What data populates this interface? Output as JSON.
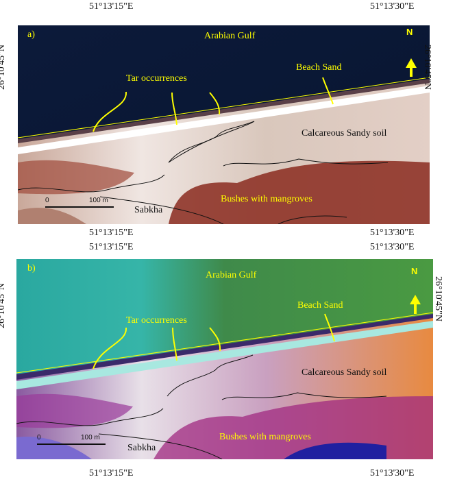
{
  "panels": [
    {
      "id": "a",
      "label": "a)",
      "top_lon_left": "51°13'15\"E",
      "top_lon_right": "51°13'30\"E",
      "bottom_lon_left": "51°13'15\"E",
      "bottom_lon_right": "51°13'30\"E",
      "lat_left": "26°10'45\"N",
      "lat_right": "26°10'45\"N"
    },
    {
      "id": "b",
      "label": "b)",
      "top_lon_left": "51°13'15\"E",
      "top_lon_right": "51°13'30\"E",
      "bottom_lon_left": "51°13'15\"E",
      "bottom_lon_right": "51°13'30\"E",
      "lat_left": "26°10'45\"N",
      "lat_right": "26°10'45\"N"
    }
  ],
  "labels": {
    "sea": "Arabian Gulf",
    "beach": "Beach Sand",
    "tar": "Tar occurrences",
    "soil": "Calcareous Sandy soil",
    "bushes": "Bushes with mangroves",
    "sabkha": "Sabkha",
    "north": "N",
    "scale_zero": "0",
    "scale_len": "100 m"
  },
  "colors": {
    "annotation": "#ffff00"
  }
}
